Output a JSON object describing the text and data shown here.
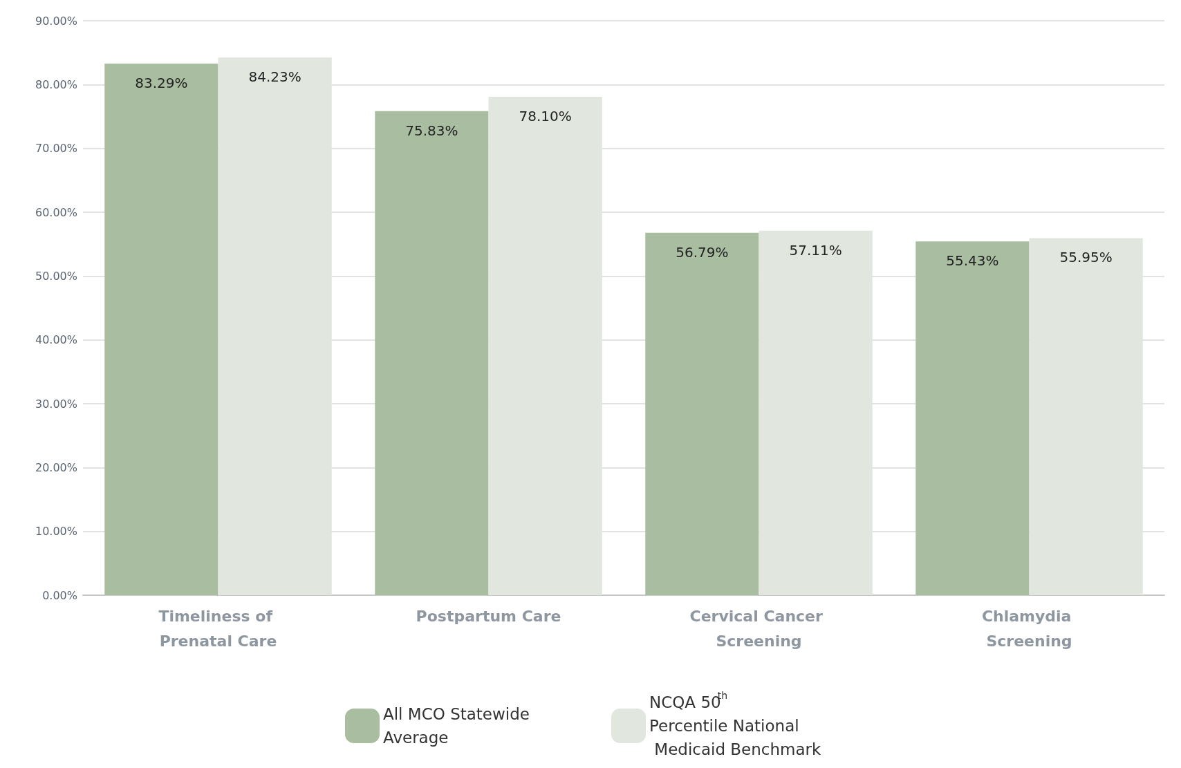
{
  "chart_data": {
    "type": "bar",
    "categories": [
      "Timeliness of Prenatal Care",
      "Postpartum Care",
      "Cervical Cancer Screening",
      "Chlamydia Screening"
    ],
    "series": [
      {
        "name": "All MCO Statewide Average",
        "color": "#a9bda1",
        "values": [
          83.29,
          75.83,
          56.79,
          55.43
        ],
        "value_labels": [
          "83.29%",
          "75.83%",
          "56.79%",
          "55.43%"
        ]
      },
      {
        "name": "NCQA 50$^{th}$ Percentile National Medicaid Benchmark",
        "color": "#e1e6df",
        "values": [
          84.23,
          78.1,
          57.11,
          55.95
        ],
        "value_labels": [
          "84.23%",
          "78.10%",
          "57.11%",
          "55.95%"
        ]
      }
    ],
    "ylim": [
      0,
      90
    ],
    "yticks": [
      {
        "value": 0,
        "label": "0.00%"
      },
      {
        "value": 10,
        "label": "10.00%"
      },
      {
        "value": 20,
        "label": "20.00%"
      },
      {
        "value": 30,
        "label": "30.00%"
      },
      {
        "value": 40,
        "label": "40.00%"
      },
      {
        "value": 50,
        "label": "50.00%"
      },
      {
        "value": 60,
        "label": "60.00%"
      },
      {
        "value": 70,
        "label": "70.00%"
      },
      {
        "value": 80,
        "label": "80.00%"
      },
      {
        "value": 90,
        "label": "90.00%"
      }
    ],
    "grid": "y",
    "legend": "bottom"
  }
}
